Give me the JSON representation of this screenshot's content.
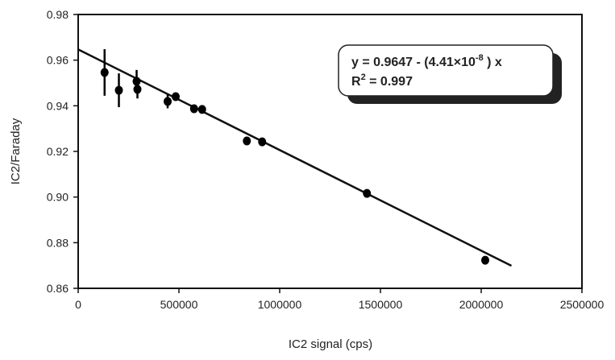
{
  "chart_data": {
    "type": "scatter",
    "title": "",
    "xlabel": "IC2 signal (cps)",
    "ylabel": "IC2/Faraday",
    "xlim": [
      0,
      2500000
    ],
    "ylim": [
      0.86,
      0.98
    ],
    "xticks": [
      "0",
      "500000",
      "1000000",
      "1500000",
      "2000000",
      "2500000"
    ],
    "yticks": [
      "0.86",
      "0.88",
      "0.90",
      "0.92",
      "0.94",
      "0.96",
      "0.98"
    ],
    "grid": false,
    "points": [
      {
        "x": 131000,
        "y": 0.9546,
        "yerr": 0.0102
      },
      {
        "x": 202000,
        "y": 0.9468,
        "yerr": 0.0074
      },
      {
        "x": 290000,
        "y": 0.9507,
        "yerr": 0.005
      },
      {
        "x": 294000,
        "y": 0.9472,
        "yerr": 0.004
      },
      {
        "x": 444000,
        "y": 0.9419,
        "yerr": 0.003
      },
      {
        "x": 484000,
        "y": 0.944,
        "yerr": 0
      },
      {
        "x": 575000,
        "y": 0.9387,
        "yerr": 0
      },
      {
        "x": 615000,
        "y": 0.9384,
        "yerr": 0
      },
      {
        "x": 837000,
        "y": 0.9246,
        "yerr": 0
      },
      {
        "x": 913000,
        "y": 0.9242,
        "yerr": 0
      },
      {
        "x": 1433000,
        "y": 0.9016,
        "yerr": 0
      },
      {
        "x": 2020000,
        "y": 0.8723,
        "yerr": 0
      }
    ],
    "fit": {
      "intercept": 0.9647,
      "slope": -4.41e-08,
      "x_range": [
        0,
        2150000
      ]
    },
    "annotation": {
      "line1_prefix": "y = 0.9647 - (4.41×10",
      "line1_exp": "-8",
      "line1_suffix": " ) x",
      "line2_prefix": "R",
      "line2_exp": "2",
      "line2_suffix": " = 0.997"
    },
    "color": "#000000"
  }
}
